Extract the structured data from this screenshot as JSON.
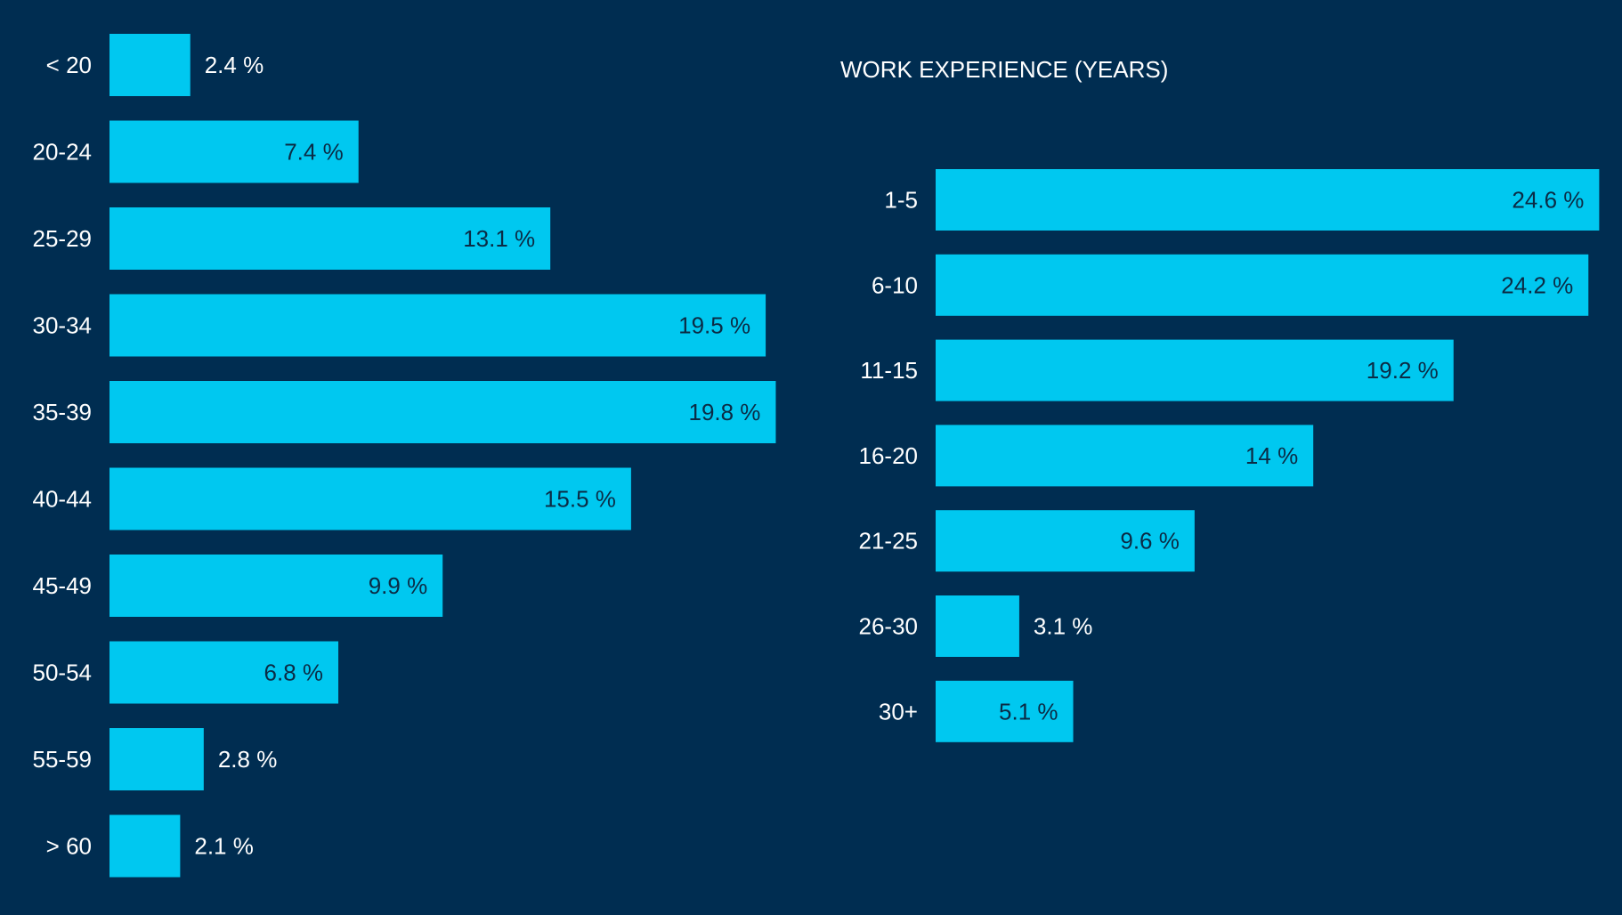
{
  "colors": {
    "background": "#002d51",
    "bar": "#00c8f0",
    "label": "#ffffff",
    "value_inside": "#0b2b45",
    "value_outside": "#ffffff"
  },
  "chart_data": [
    {
      "type": "bar",
      "orientation": "horizontal",
      "title": "",
      "categories": [
        "< 20",
        "20-24",
        "25-29",
        "30-34",
        "35-39",
        "40-44",
        "45-49",
        "50-54",
        "55-59",
        "> 60"
      ],
      "values": [
        2.4,
        7.4,
        13.1,
        19.5,
        19.8,
        15.5,
        9.9,
        6.8,
        2.8,
        2.1
      ],
      "value_labels": [
        "2.4 %",
        "7.4 %",
        "13.1 %",
        "19.5 %",
        "19.8 %",
        "15.5 %",
        "9.9 %",
        "6.8 %",
        "2.8 %",
        "2.1 %"
      ],
      "unit": "%",
      "grid": false,
      "axes_visible": false
    },
    {
      "type": "bar",
      "orientation": "horizontal",
      "title": "WORK EXPERIENCE (YEARS)",
      "categories": [
        "1-5",
        "6-10",
        "11-15",
        "16-20",
        "21-25",
        "26-30",
        "30+"
      ],
      "values": [
        24.6,
        24.2,
        19.2,
        14,
        9.6,
        3.1,
        5.1
      ],
      "value_labels": [
        "24.6 %",
        "24.2 %",
        "19.2 %",
        "14 %",
        "9.6 %",
        "3.1 %",
        "5.1 %"
      ],
      "unit": "%",
      "grid": false,
      "axes_visible": false
    }
  ]
}
